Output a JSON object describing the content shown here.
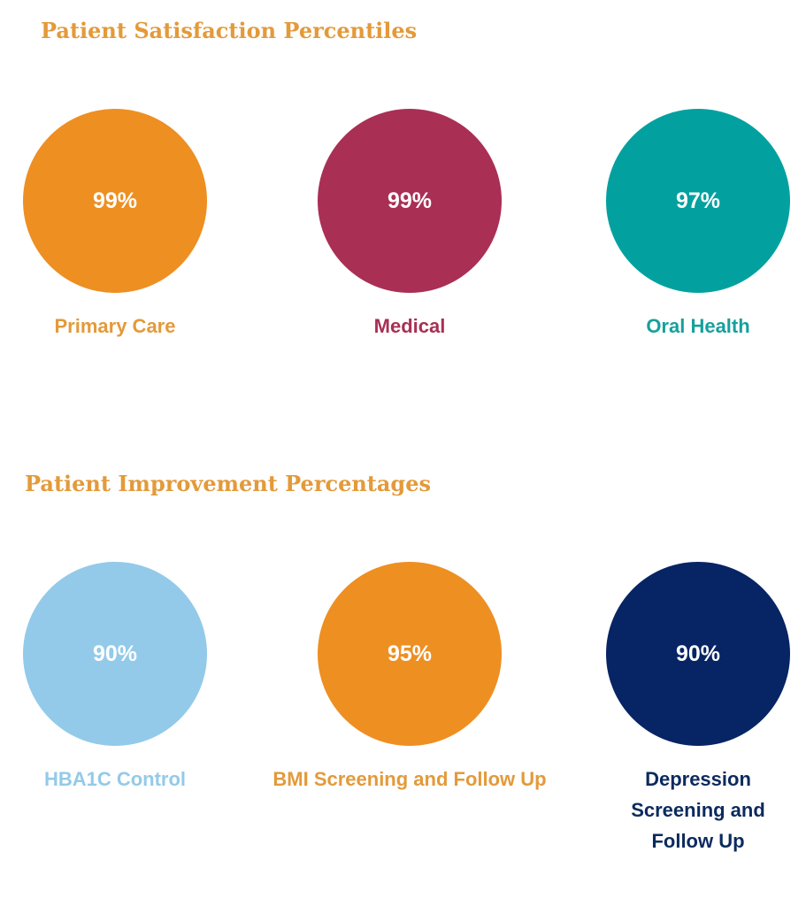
{
  "satisfaction": {
    "title": "Patient Satisfaction Percentiles",
    "items": [
      {
        "value": "99%",
        "label": "Primary Care",
        "color": "#ee8f22",
        "label_color": "#e39a3a"
      },
      {
        "value": "99%",
        "label": "Medical",
        "color": "#a92f55",
        "label_color": "#a92f55"
      },
      {
        "value": "97%",
        "label": "Oral Health",
        "color": "#02a1a0",
        "label_color": "#17a09d"
      }
    ]
  },
  "improvement": {
    "title": "Patient Improvement Percentages",
    "items": [
      {
        "value": "90%",
        "label": "HBA1C Control",
        "color": "#93cae9",
        "label_color": "#93cae9"
      },
      {
        "value": "95%",
        "label": "BMI Screening and Follow Up",
        "color": "#ee8f22",
        "label_color": "#e39a3a"
      },
      {
        "value": "90%",
        "label": "Depression Screening and Follow Up",
        "color": "#072464",
        "label_color": "#0b2a5e"
      }
    ]
  }
}
